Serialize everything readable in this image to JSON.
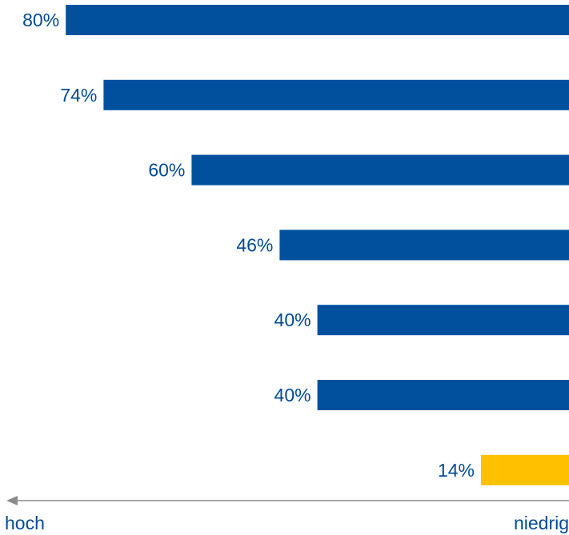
{
  "colors": {
    "primary": "#00509e",
    "highlight": "#ffc000",
    "text": "#004a99",
    "axis": "#8c8c8c"
  },
  "axis": {
    "left_label": "hoch",
    "right_label": "niedrig",
    "direction": "arrow pointing left (towards hoch)"
  },
  "chart_data": {
    "type": "bar",
    "orientation": "horizontal",
    "grid": false,
    "legend": "none",
    "xlim": [
      0,
      100
    ],
    "series": [
      {
        "values": [
          80,
          74,
          60,
          46,
          40,
          40,
          14
        ],
        "labels": [
          "80%",
          "74%",
          "60%",
          "46%",
          "40%",
          "40%",
          "14%"
        ],
        "highlight": [
          false,
          false,
          false,
          false,
          false,
          false,
          true
        ]
      }
    ],
    "xlabel_left": "hoch",
    "xlabel_right": "niedrig"
  }
}
